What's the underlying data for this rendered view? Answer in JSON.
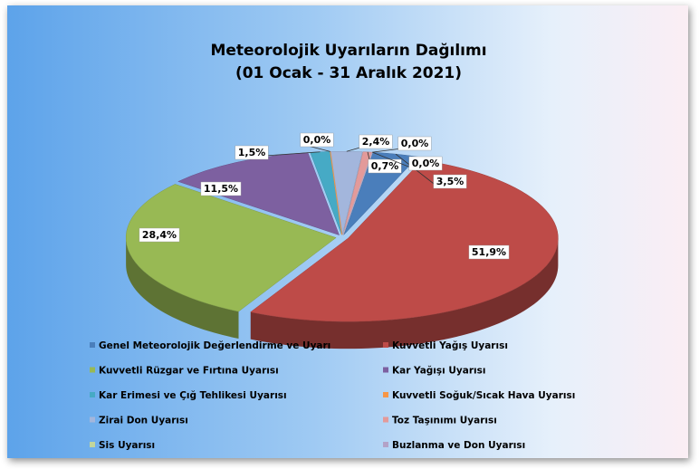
{
  "chart_data": {
    "type": "pie3d",
    "title": "Meteorolojik Uyarıların Dağılımı",
    "subtitle": "(01 Ocak - 31 Aralık 2021)",
    "categories": [
      "Genel Meteorolojik Değerlendirme ve Uyarı",
      "Kuvvetli Yağış Uyarısı",
      "Kuvvetli Rüzgar ve Fırtına Uyarısı",
      "Kar Yağışı Uyarısı",
      "Kar Erimesi ve Çığ Tehlikesi Uyarısı",
      "Kuvvetli Soğuk/Sıcak Hava Uyarısı",
      "Zirai Don Uyarısı",
      "Toz Taşınımı Uyarısı",
      "Sis Uyarısı",
      "Buzlanma ve Don Uyarısı"
    ],
    "values": [
      3.5,
      51.9,
      28.4,
      11.5,
      1.5,
      0,
      2.4,
      0.7,
      0,
      0
    ],
    "value_labels": [
      "3,5%",
      "51,9%",
      "28,4%",
      "11,5%",
      "1,5%",
      "0,0%",
      "2,4%",
      "0,7%",
      "0,0%",
      "0,0%"
    ],
    "colors": [
      "#4a7ebb",
      "#be4b48",
      "#98b954",
      "#7d60a0",
      "#46aac5",
      "#f79646",
      "#a3b6dc",
      "#e39a9a",
      "#c3d69b",
      "#b3a2c7"
    ],
    "legend": "bottom"
  }
}
